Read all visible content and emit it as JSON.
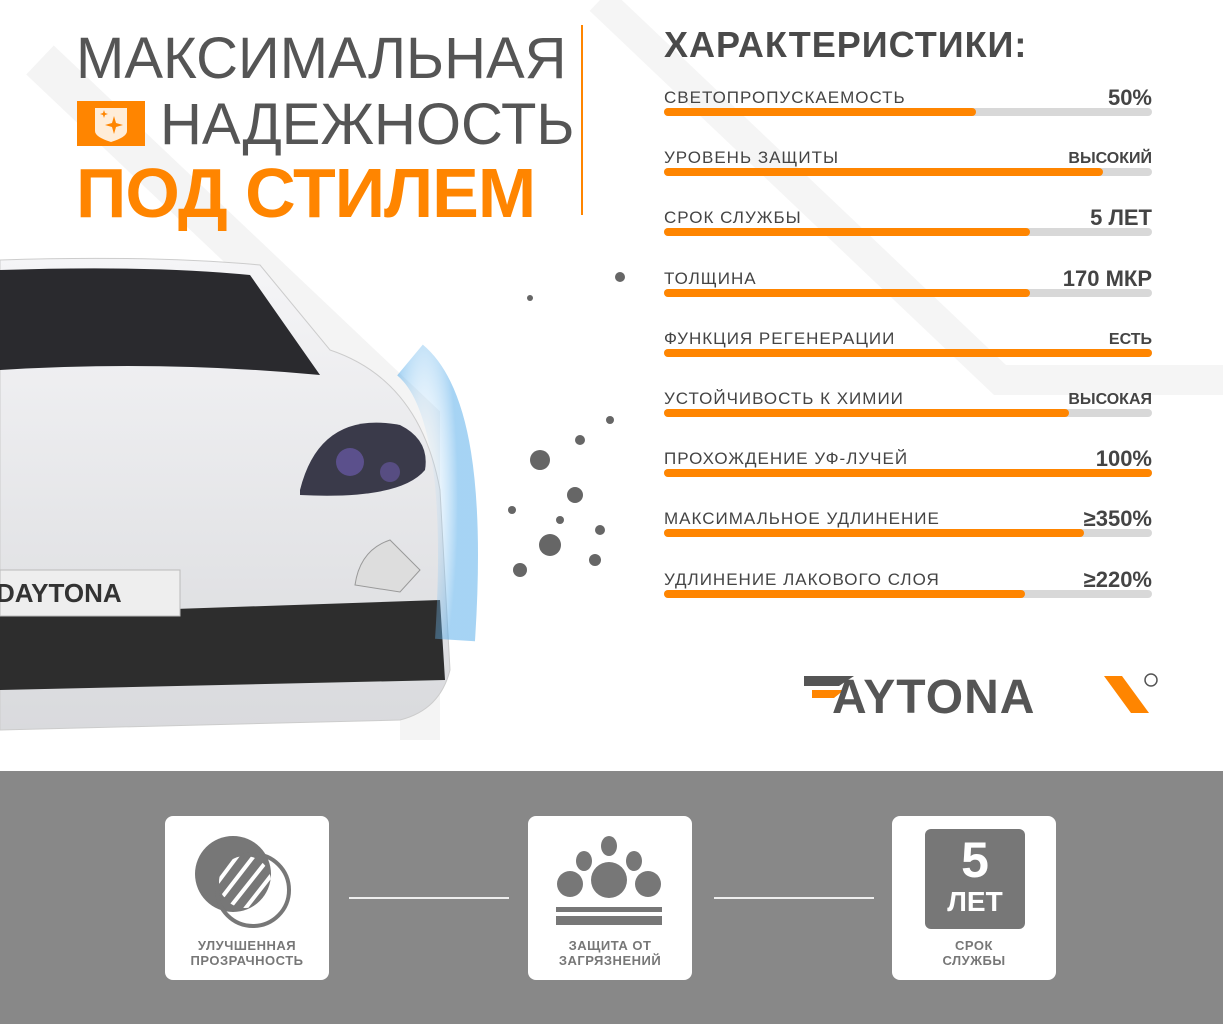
{
  "headline": {
    "line1": "МАКСИМАЛЬНАЯ",
    "line2": "НАДЕЖНОСТЬ",
    "line3": "ПОД СТИЛЕМ"
  },
  "specs": {
    "title": "ХАРАКТЕРИСТИКИ:",
    "accent_color": "#ff8500",
    "items": [
      {
        "label": "СВЕТОПРОПУСКАЕМОСТЬ",
        "value": "50%",
        "level": 0.64
      },
      {
        "label": "УРОВЕНЬ ЗАЩИТЫ",
        "value": "ВЫСОКИЙ",
        "level": 0.9
      },
      {
        "label": "СРОК СЛУЖБЫ",
        "value": "5 ЛЕТ",
        "level": 0.75
      },
      {
        "label": "ТОЛЩИНА",
        "value": "170 МКР",
        "level": 0.75
      },
      {
        "label": "ФУНКЦИЯ РЕГЕНЕРАЦИИ",
        "value": "ЕСТЬ",
        "level": 1.0
      },
      {
        "label": "УСТОЙЧИВОСТЬ К ХИМИИ",
        "value": "ВЫСОКАЯ",
        "level": 0.83
      },
      {
        "label": "ПРОХОЖДЕНИЕ УФ-ЛУЧЕЙ",
        "value": "100%",
        "level": 1.0
      },
      {
        "label": "МАКСИМАЛЬНОЕ УДЛИНЕНИЕ",
        "value": "≥350%",
        "level": 0.86
      },
      {
        "label": "УДЛИНЕНИЕ ЛАКОВОГО СЛОЯ",
        "value": "≥220%",
        "level": 0.74
      }
    ]
  },
  "brand": {
    "name": "DAYTONA",
    "plate": "DAYTONA"
  },
  "features": [
    {
      "icon": "transparency-lens-icon",
      "caption1": "УЛУЧШЕННАЯ",
      "caption2": "ПРОЗРАЧНОСТЬ"
    },
    {
      "icon": "dirt-protection-icon",
      "caption1": "ЗАЩИТА ОТ",
      "caption2": "ЗАГРЯЗНЕНИЙ"
    },
    {
      "icon": "five-years-icon",
      "badge_number": "5",
      "badge_unit": "ЛЕТ",
      "caption1": "СРОК",
      "caption2": "СЛУЖБЫ"
    }
  ]
}
